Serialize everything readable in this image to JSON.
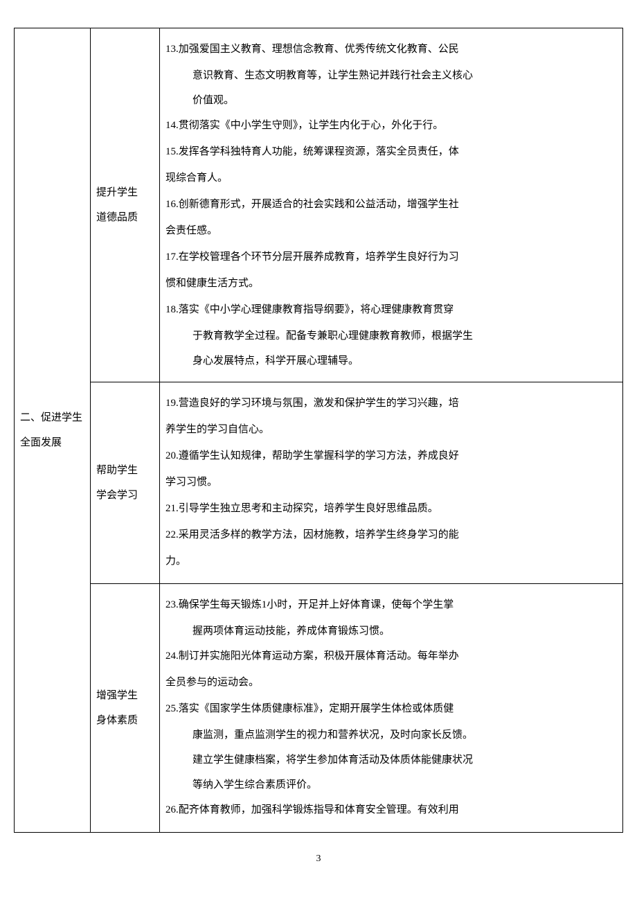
{
  "pageNumber": "3",
  "col1Label1": "二、促进学生",
  "col1Label2": "全面发展",
  "section1": {
    "label1": "提升学生",
    "label2": "道德品质",
    "i13a": "13.加强爱国主义教育、理想信念教育、优秀传统文化教育、公民",
    "i13b": "意识教育、生态文明教育等，让学生熟记并践行社会主义核心",
    "i13c": "价值观。",
    "i14": "14.贯彻落实《中小学生守则》，让学生内化于心，外化于行。",
    "i15a": "15.发挥各学科独特育人功能，统筹课程资源，落实全员责任，体",
    "i15b": "现综合育人。",
    "i16a": "16.创新德育形式，开展适合的社会实践和公益活动，增强学生社",
    "i16b": "会责任感。",
    "i17a": "17.在学校管理各个环节分层开展养成教育，培养学生良好行为习",
    "i17b": "惯和健康生活方式。",
    "i18a": "18.落实《中小学心理健康教育指导纲要》，将心理健康教育贯穿",
    "i18b": "于教育教学全过程。配备专兼职心理健康教育教师，根据学生",
    "i18c": "身心发展特点，科学开展心理辅导。"
  },
  "section2": {
    "label1": "帮助学生",
    "label2": "学会学习",
    "i19a": "19.营造良好的学习环境与氛围，激发和保护学生的学习兴趣，培",
    "i19b": "养学生的学习自信心。",
    "i20a": "20.遵循学生认知规律，帮助学生掌握科学的学习方法，养成良好",
    "i20b": "学习习惯。",
    "i21": "21.引导学生独立思考和主动探究，培养学生良好思维品质。",
    "i22a": "22.采用灵活多样的教学方法，因材施教，培养学生终身学习的能",
    "i22b": "力。"
  },
  "section3": {
    "label1": "增强学生",
    "label2": "身体素质",
    "i23a": "23.确保学生每天锻炼1小时，开足并上好体育课，使每个学生掌",
    "i23b": "握两项体育运动技能，养成体育锻炼习惯。",
    "i24a": "24.制订并实施阳光体育运动方案，积极开展体育活动。每年举办",
    "i24b": "全员参与的运动会。",
    "i25a": "25.落实《国家学生体质健康标准》，定期开展学生体检或体质健",
    "i25b": "康监测，重点监测学生的视力和营养状况，及时向家长反馈。",
    "i25c": "建立学生健康档案，将学生参加体育活动及体质体能健康状况",
    "i25d": "等纳入学生综合素质评价。",
    "i26": "26.配齐体育教师，加强科学锻炼指导和体育安全管理。有效利用"
  }
}
